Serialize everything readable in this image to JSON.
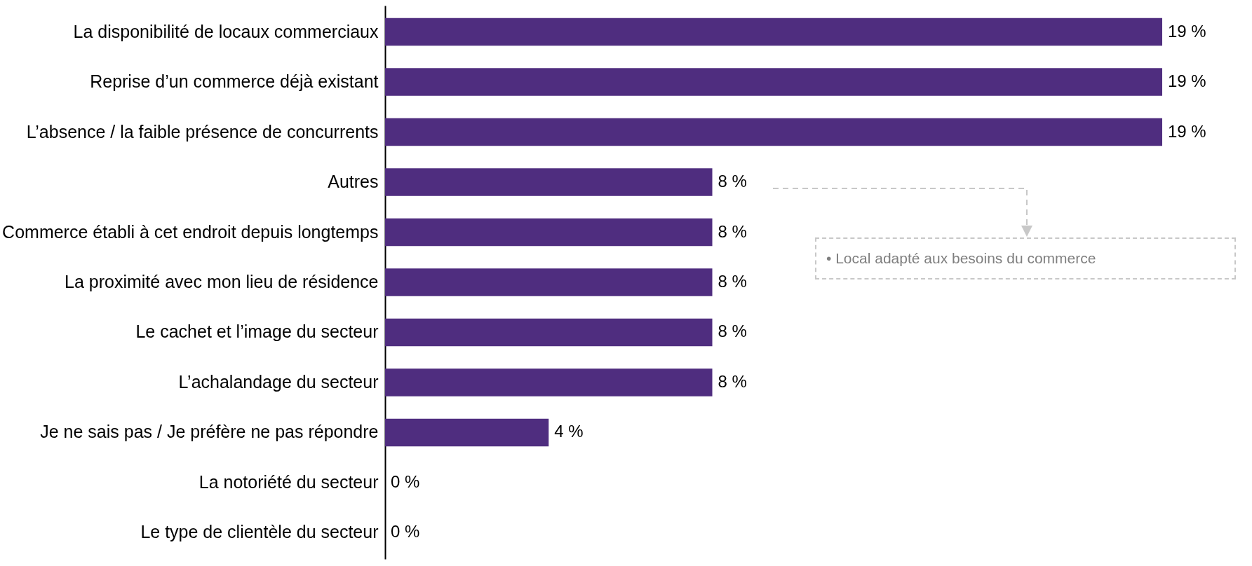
{
  "chart_data": {
    "type": "bar",
    "orientation": "horizontal",
    "categories": [
      "La disponibilité de locaux commerciaux",
      "Reprise d’un commerce déjà existant",
      "L’absence / la faible présence de concurrents",
      "Autres",
      "Commerce établi à cet endroit depuis longtemps",
      "La proximité avec mon lieu de résidence",
      "Le cachet et l’image du secteur",
      "L’achalandage du secteur",
      "Je ne sais pas / Je préfère ne pas répondre",
      "La notoriété du secteur",
      "Le type de clientèle du secteur"
    ],
    "values": [
      19,
      19,
      19,
      8,
      8,
      8,
      8,
      8,
      4,
      0,
      0
    ],
    "value_labels": [
      "19 %",
      "19 %",
      "19 %",
      "8 %",
      "8 %",
      "8 %",
      "8 %",
      "8 %",
      "4 %",
      "0 %",
      "0 %"
    ],
    "color": "#4f2d7f",
    "annotations": [
      "• Local adapté aux besoins du commerce"
    ]
  }
}
